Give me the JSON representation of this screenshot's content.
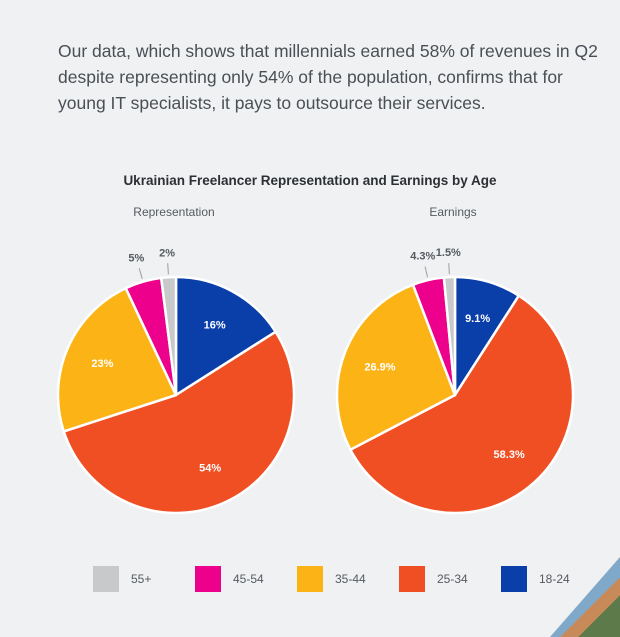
{
  "intro_text": "Our data, which shows that millennials earned 58% of revenues in Q2 despite representing only 54% of the population, confirms that for young IT specialists, it pays to outsource their services.",
  "chart_data": {
    "type": "pie",
    "title": "Ukrainian Freelancer Representation and Earnings by Age",
    "categories": [
      "18-24",
      "25-34",
      "35-44",
      "45-54",
      "55+"
    ],
    "colors": {
      "18-24": "#0a3ea8",
      "25-34": "#f04e23",
      "35-44": "#fcb316",
      "45-54": "#ec008c",
      "55+": "#c8c9cb"
    },
    "series": [
      {
        "name": "Representation",
        "values": [
          16,
          54,
          23,
          5,
          2
        ],
        "labels": [
          "16%",
          "54%",
          "23%",
          "5%",
          "2%"
        ]
      },
      {
        "name": "Earnings",
        "values": [
          9.1,
          58.3,
          26.9,
          4.3,
          1.5
        ],
        "labels": [
          "9.1%",
          "58.3%",
          "26.9%",
          "4.3%",
          "1.5%"
        ]
      }
    ],
    "legend": {
      "placement": "bottom",
      "order": [
        "55+",
        "45-54",
        "35-44",
        "25-34",
        "18-24"
      ]
    }
  }
}
